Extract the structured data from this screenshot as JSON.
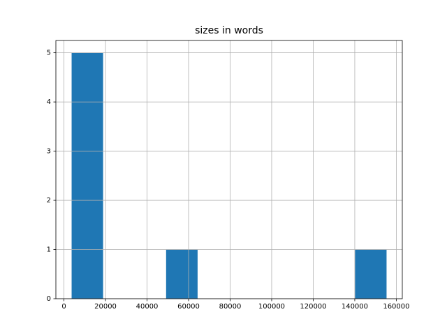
{
  "chart_data": {
    "type": "histogram",
    "title": "sizes in words",
    "bins": [
      3700,
      18860,
      34020,
      49180,
      64340,
      79500,
      94660,
      109820,
      124980,
      140140,
      155300
    ],
    "counts": [
      5,
      0,
      0,
      1,
      0,
      0,
      0,
      0,
      0,
      1
    ],
    "color": "#1f77b4",
    "xlim": [
      -3880,
      162880
    ],
    "xticks": [
      0,
      20000,
      40000,
      60000,
      80000,
      100000,
      120000,
      140000,
      160000
    ],
    "ylim": [
      0,
      5.25
    ],
    "yticks": [
      0,
      1,
      2,
      3,
      4,
      5
    ],
    "grid": true
  }
}
